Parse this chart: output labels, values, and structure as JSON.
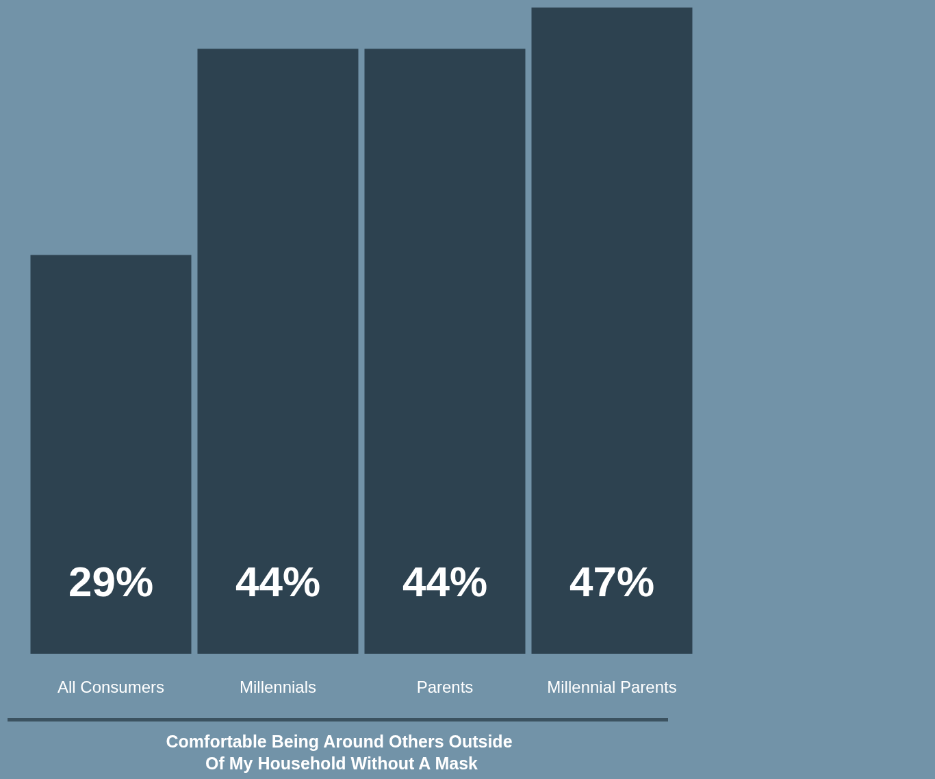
{
  "chart_data": {
    "type": "bar",
    "title": "Comfortable Being Around Others Outside Of My Household Without A Mask",
    "categories": [
      "All Consumers",
      "Millennials",
      "Parents",
      "Millennial Parents"
    ],
    "values": [
      29,
      44,
      44,
      47
    ],
    "color": "#2d4250",
    "value_labels": [
      "29%",
      "44%",
      "44%",
      "47%"
    ]
  }
}
